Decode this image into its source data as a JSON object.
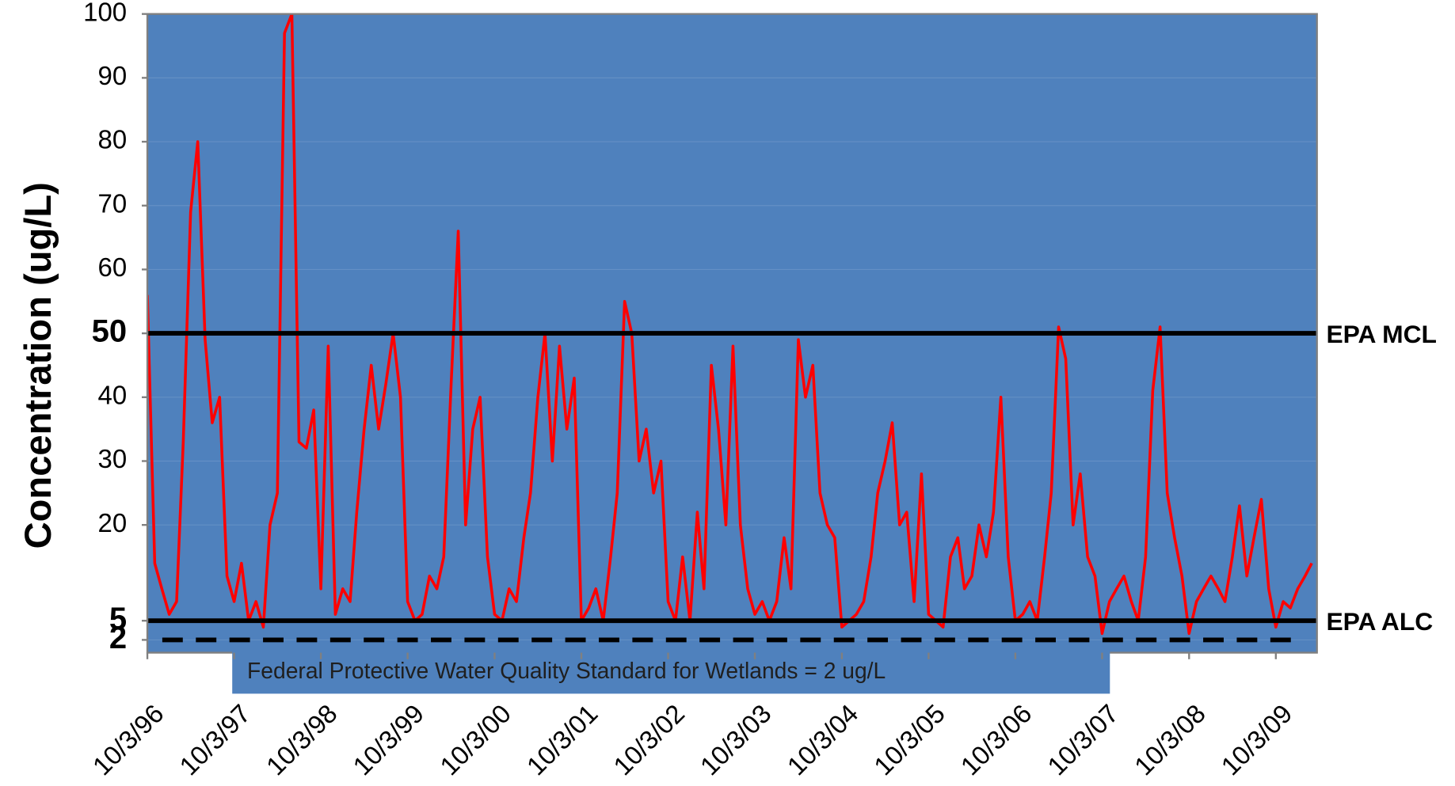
{
  "chart_data": {
    "type": "line",
    "y_label": "Concentration (ug/L)",
    "x": [
      "1996-10-03",
      "1996-11-03",
      "1996-12-03",
      "1997-01-03",
      "1997-02-03",
      "1997-03-03",
      "1997-04-03",
      "1997-05-03",
      "1997-06-03",
      "1997-07-03",
      "1997-08-03",
      "1997-09-03",
      "1997-10-03",
      "1997-11-03",
      "1997-12-03",
      "1998-01-03",
      "1998-02-03",
      "1998-03-03",
      "1998-04-03",
      "1998-05-03",
      "1998-06-03",
      "1998-07-03",
      "1998-08-03",
      "1998-09-03",
      "1998-10-03",
      "1998-11-03",
      "1998-12-03",
      "1999-01-03",
      "1999-02-03",
      "1999-03-03",
      "1999-04-03",
      "1999-05-03",
      "1999-06-03",
      "1999-07-03",
      "1999-08-03",
      "1999-09-03",
      "1999-10-03",
      "1999-11-03",
      "1999-12-03",
      "2000-01-03",
      "2000-02-03",
      "2000-03-03",
      "2000-04-03",
      "2000-05-03",
      "2000-06-03",
      "2000-07-03",
      "2000-08-03",
      "2000-09-03",
      "2000-10-03",
      "2000-11-03",
      "2000-12-03",
      "2001-01-03",
      "2001-02-03",
      "2001-03-03",
      "2001-04-03",
      "2001-05-03",
      "2001-06-03",
      "2001-07-03",
      "2001-08-03",
      "2001-09-03",
      "2001-10-03",
      "2001-11-03",
      "2001-12-03",
      "2002-01-03",
      "2002-02-03",
      "2002-03-03",
      "2002-04-03",
      "2002-05-03",
      "2002-06-03",
      "2002-07-03",
      "2002-08-03",
      "2002-09-03",
      "2002-10-03",
      "2002-11-03",
      "2002-12-03",
      "2003-01-03",
      "2003-02-03",
      "2003-03-03",
      "2003-04-03",
      "2003-05-03",
      "2003-06-03",
      "2003-07-03",
      "2003-08-03",
      "2003-09-03",
      "2003-10-03",
      "2003-11-03",
      "2003-12-03",
      "2004-01-03",
      "2004-02-03",
      "2004-03-03",
      "2004-04-03",
      "2004-05-03",
      "2004-06-03",
      "2004-07-03",
      "2004-08-03",
      "2004-09-03",
      "2004-10-03",
      "2004-11-03",
      "2004-12-03",
      "2005-01-03",
      "2005-02-03",
      "2005-03-03",
      "2005-04-03",
      "2005-05-03",
      "2005-06-03",
      "2005-07-03",
      "2005-08-03",
      "2005-09-03",
      "2005-10-03",
      "2005-11-03",
      "2005-12-03",
      "2006-01-03",
      "2006-02-03",
      "2006-03-03",
      "2006-04-03",
      "2006-05-03",
      "2006-06-03",
      "2006-07-03",
      "2006-08-03",
      "2006-09-03",
      "2006-10-03",
      "2006-11-03",
      "2006-12-03",
      "2007-01-03",
      "2007-02-03",
      "2007-03-03",
      "2007-04-03",
      "2007-05-03",
      "2007-06-03",
      "2007-07-03",
      "2007-08-03",
      "2007-09-03",
      "2007-10-03",
      "2007-11-03",
      "2007-12-03",
      "2008-01-03",
      "2008-02-03",
      "2008-03-03",
      "2008-04-03",
      "2008-05-03",
      "2008-06-03",
      "2008-07-03",
      "2008-08-03",
      "2008-09-03",
      "2008-10-03",
      "2008-11-03",
      "2008-12-03",
      "2009-01-03",
      "2009-02-03",
      "2009-03-03",
      "2009-04-03",
      "2009-05-03",
      "2009-06-03",
      "2009-07-03",
      "2009-08-03",
      "2009-09-03",
      "2009-10-03",
      "2009-11-03",
      "2009-12-03",
      "2010-01-03",
      "2010-02-03",
      "2010-03-03"
    ],
    "series": [
      {
        "color": "#ff0000",
        "values": [
          56,
          14,
          10,
          6,
          8,
          33,
          69,
          80,
          49,
          36,
          40,
          12,
          8,
          14,
          5,
          8,
          4,
          20,
          25,
          97,
          100,
          33,
          32,
          38,
          10,
          48,
          6,
          10,
          8,
          22,
          35,
          45,
          35,
          42,
          50,
          40,
          8,
          5,
          6,
          12,
          10,
          15,
          42,
          66,
          20,
          35,
          40,
          15,
          6,
          5,
          10,
          8,
          18,
          25,
          40,
          50,
          30,
          48,
          35,
          43,
          5,
          7,
          10,
          5,
          15,
          25,
          55,
          50,
          30,
          35,
          25,
          30,
          8,
          5,
          15,
          5,
          22,
          10,
          45,
          35,
          20,
          48,
          20,
          10,
          6,
          8,
          5,
          8,
          18,
          10,
          49,
          40,
          45,
          25,
          20,
          18,
          4,
          5,
          6,
          8,
          15,
          25,
          30,
          36,
          20,
          22,
          8,
          28,
          6,
          5,
          4,
          15,
          18,
          10,
          12,
          20,
          15,
          22,
          40,
          15,
          5,
          6,
          8,
          5,
          15,
          25,
          51,
          46,
          20,
          28,
          15,
          12,
          3,
          8,
          10,
          12,
          8,
          5,
          15,
          41,
          51,
          25,
          18,
          12,
          3,
          8,
          10,
          12,
          10,
          8,
          15,
          23,
          12,
          18,
          24,
          10,
          4,
          8,
          7,
          10,
          12,
          14
        ]
      }
    ],
    "xlim": [
      "1996-10-03",
      "2010-03-25"
    ],
    "xticks": [
      {
        "value": "1996-10-03",
        "label": "10/3/96"
      },
      {
        "value": "1997-10-03",
        "label": "10/3/97"
      },
      {
        "value": "1998-10-03",
        "label": "10/3/98"
      },
      {
        "value": "1999-10-03",
        "label": "10/3/99"
      },
      {
        "value": "2000-10-03",
        "label": "10/3/00"
      },
      {
        "value": "2001-10-03",
        "label": "10/3/01"
      },
      {
        "value": "2002-10-03",
        "label": "10/3/02"
      },
      {
        "value": "2003-10-03",
        "label": "10/3/03"
      },
      {
        "value": "2004-10-03",
        "label": "10/3/04"
      },
      {
        "value": "2005-10-03",
        "label": "10/3/05"
      },
      {
        "value": "2006-10-03",
        "label": "10/3/06"
      },
      {
        "value": "2007-10-03",
        "label": "10/3/07"
      },
      {
        "value": "2008-10-03",
        "label": "10/3/08"
      },
      {
        "value": "2009-10-03",
        "label": "10/3/09"
      }
    ],
    "ylim": [
      0,
      100
    ],
    "yticks": [
      2,
      5,
      20,
      30,
      40,
      50,
      60,
      70,
      80,
      90,
      100
    ],
    "grid": true,
    "plot_background": "#4f81bd",
    "reference_lines": [
      {
        "value": 50,
        "label": "EPA MCL",
        "style": "solid",
        "color": "#000000"
      },
      {
        "value": 5,
        "label": "EPA ALC",
        "style": "solid",
        "color": "#000000"
      },
      {
        "value": 2,
        "style": "dashed",
        "color": "#000000"
      }
    ],
    "annotation": "Federal Protective Water Quality Standard for Wetlands = 2 ug/L"
  }
}
